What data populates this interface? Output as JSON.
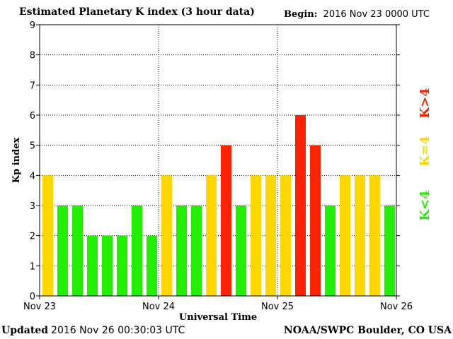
{
  "header": {
    "title": "Estimated Planetary K index (3 hour data)",
    "begin_label": "Begin:",
    "begin_value": "2016 Nov 23 0000 UTC"
  },
  "footer": {
    "updated_label": "Updated",
    "updated_value": "2016 Nov 26 00:30:03 UTC",
    "credit": "NOAA/SWPC Boulder, CO USA"
  },
  "colors": {
    "low": "#22ee00",
    "mid": "#ffd700",
    "high": "#ff2200"
  },
  "chart_data": {
    "type": "bar",
    "title": "Estimated Planetary K index (3 hour data)",
    "xlabel": "Universal Time",
    "ylabel": "Kp index",
    "ylim": [
      0,
      9
    ],
    "yticks": [
      "0",
      "1",
      "2",
      "3",
      "4",
      "5",
      "6",
      "7",
      "8",
      "9"
    ],
    "xticks": [
      "Nov 23",
      "Nov 24",
      "Nov 25",
      "Nov 26"
    ],
    "grid": true,
    "legend": [
      {
        "label": "K<4",
        "level": "low"
      },
      {
        "label": "K=4",
        "level": "mid"
      },
      {
        "label": "K>4",
        "level": "high"
      }
    ],
    "legend_position": "right",
    "values": [
      4,
      3,
      3,
      2,
      2,
      2,
      3,
      2,
      4,
      3,
      3,
      4,
      5,
      3,
      4,
      4,
      4,
      6,
      5,
      3,
      4,
      4,
      4,
      3
    ]
  }
}
